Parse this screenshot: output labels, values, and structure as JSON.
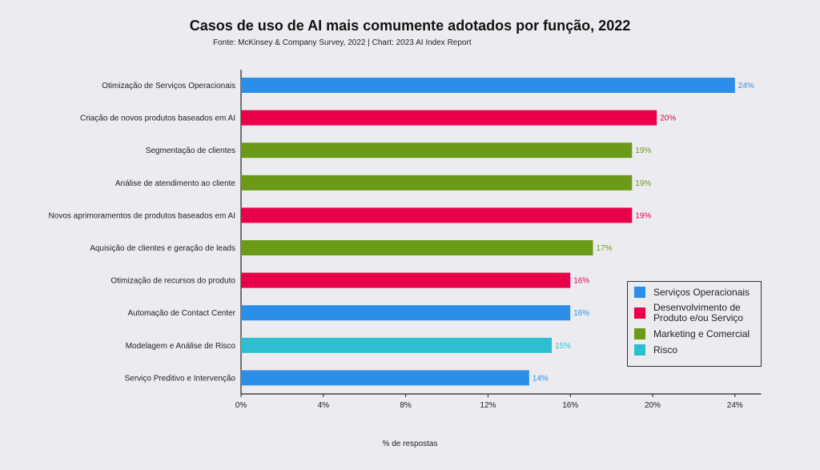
{
  "chart_data": {
    "type": "bar",
    "orientation": "horizontal",
    "title": "Casos de uso de AI mais comumente adotados por função, 2022",
    "subtitle": "Fonte: McKinsey & Company Survey, 2022 | Chart: 2023 AI Index Report",
    "xlabel": "% de respostas",
    "xlim": [
      0,
      25
    ],
    "x_ticks": [
      "0%",
      "4%",
      "8%",
      "12%",
      "16%",
      "20%",
      "24%"
    ],
    "grid": false,
    "legend_position": "bottom-right",
    "categories": [
      "Otimização de Serviços Operacionais",
      "Criação de novos produtos baseados em AI",
      "Segmentação de clientes",
      "Análise de atendimento ao cliente",
      "Novos aprimoramentos de produtos baseados em AI",
      "Aquisição de clientes e geração de leads",
      "Otimização de recursos do produto",
      "Automação de Contact Center",
      "Modelagem e Análise de Risco",
      "Serviço Preditivo e Intervenção"
    ],
    "values": [
      24,
      20.2,
      19,
      19,
      19,
      17.1,
      16,
      16,
      15.1,
      14
    ],
    "value_labels": [
      "24%",
      "20%",
      "19%",
      "19%",
      "19%",
      "17%",
      "16%",
      "16%",
      "15%",
      "14%"
    ],
    "bar_series": [
      0,
      1,
      2,
      2,
      1,
      2,
      1,
      0,
      3,
      0
    ],
    "series": [
      {
        "name": "Serviços Operacionais",
        "color": "#2b8fea"
      },
      {
        "name": "Desenvolvimento de Produto e/ou Serviço",
        "color": "#e8004a"
      },
      {
        "name": "Marketing e Comercial",
        "color": "#6a9a18"
      },
      {
        "name": "Risco",
        "color": "#2bbfcf"
      }
    ]
  }
}
